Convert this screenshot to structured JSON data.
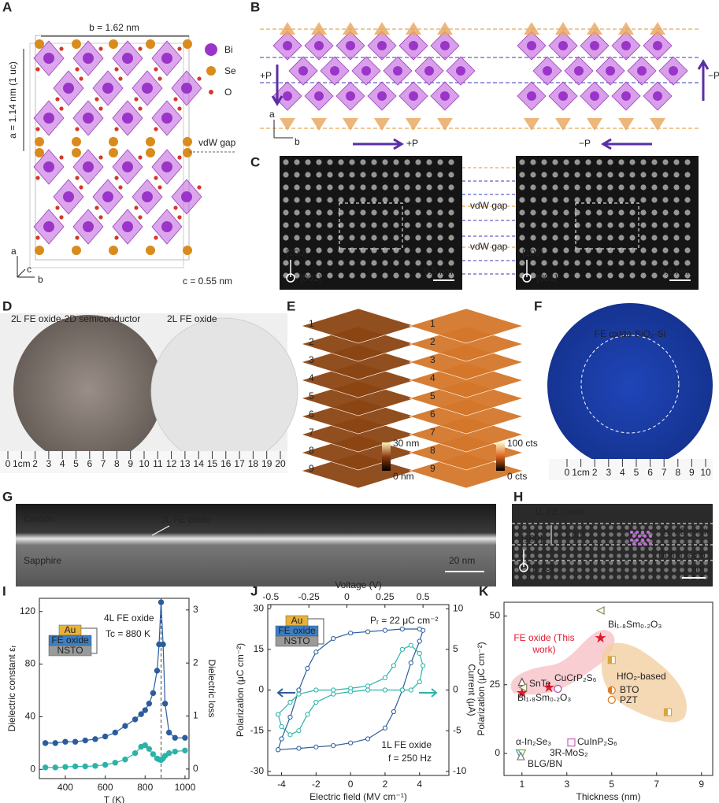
{
  "panels": {
    "A": {
      "label": "A",
      "b_length": "b = 1.62 nm",
      "a_length": "a = 1.14 nm (1 uc)",
      "vdw_gap": "vdW gap",
      "legend": [
        "Bi",
        "Se",
        "O"
      ],
      "c_length": "c = 0.55 nm",
      "axes": [
        "a",
        "c",
        "b"
      ]
    },
    "B": {
      "label": "B",
      "left_p": "+P",
      "right_p": "−P",
      "bottom_left_p": "+P",
      "bottom_right_p": "−P",
      "axes": [
        "a",
        "b"
      ]
    },
    "C": {
      "label": "C",
      "vdw_gap": [
        "vdW gap",
        "vdW gap"
      ],
      "directions": [
        "[100]",
        "[001]",
        "[100]",
        "[001]"
      ],
      "scale": [
        "0.5 nm",
        "0.5 nm"
      ]
    },
    "D": {
      "label": "D",
      "left": "2L FE oxide-2D semiconductor",
      "right": "2L FE oxide",
      "ruler": [
        "0",
        "1cm",
        "2",
        "3",
        "4",
        "5",
        "6",
        "7",
        "8",
        "9",
        "10",
        "11",
        "12",
        "13",
        "14",
        "15",
        "16",
        "17",
        "18",
        "19",
        "20"
      ]
    },
    "E": {
      "label": "E",
      "layers": [
        "1",
        "2",
        "3",
        "4",
        "5",
        "6",
        "7",
        "8",
        "9"
      ],
      "scale_left": [
        "30 nm",
        "0 nm"
      ],
      "scale_right": [
        "100 cts",
        "0 cts"
      ]
    },
    "F": {
      "label": "F",
      "sample": "FE oxide-SiO₂-Si",
      "ruler": [
        "0",
        "1cm",
        "2",
        "3",
        "4",
        "5",
        "6",
        "7",
        "8",
        "9",
        "10"
      ]
    },
    "G": {
      "label": "G",
      "top": "Carbon",
      "film": "3L FE oxide",
      "bottom": "Sapphire",
      "scale": "20 nm"
    },
    "H": {
      "label": "H",
      "top": "1L FE oxide",
      "direction_up": "[100]",
      "thickness": "1.1 nm",
      "film": "1L FE oxide",
      "buffer": "Buffer layer",
      "direction": "[013]",
      "scale": "1 nm"
    }
  },
  "chart_data": [
    {
      "type": "line",
      "label": "I",
      "title": "4L FE oxide",
      "annotation": "Tc = 880 K",
      "tc": 880,
      "inset": [
        "Au",
        "FE oxide",
        "NSTO"
      ],
      "xlabel": "T (K)",
      "ylabel": "Dielectric constant εᵣ",
      "y2label": "Dielectric loss",
      "x": [
        300,
        350,
        400,
        450,
        500,
        550,
        600,
        650,
        700,
        750,
        780,
        800,
        820,
        840,
        860,
        870,
        880,
        890,
        900,
        920,
        950,
        1000
      ],
      "series": [
        {
          "color": "#2b5d9c",
          "marker": "circle",
          "values": [
            20,
            20,
            21,
            21,
            22,
            23,
            25,
            28,
            33,
            38,
            42,
            45,
            50,
            58,
            75,
            95,
            127,
            95,
            50,
            28,
            24,
            24
          ]
        },
        {
          "color": "#2bb3a8",
          "marker": "circle",
          "axis": "y2",
          "values": [
            0.03,
            0.03,
            0.04,
            0.05,
            0.05,
            0.06,
            0.08,
            0.12,
            0.18,
            0.3,
            0.42,
            0.45,
            0.38,
            0.28,
            0.2,
            0.18,
            0.17,
            0.2,
            0.25,
            0.3,
            0.33,
            0.35
          ]
        }
      ],
      "xlim": [
        270,
        1020
      ],
      "xticks": [
        400,
        600,
        800,
        1000
      ],
      "ylim": [
        -7,
        130
      ],
      "yticks": [
        0,
        40,
        80,
        120
      ],
      "y2lim": [
        -0.18,
        3.22
      ],
      "y2ticks": [
        0,
        1,
        2,
        3
      ]
    },
    {
      "type": "line",
      "label": "J",
      "annotations": [
        "Pᵣ = 22 μC cm⁻²",
        "1L FE oxide",
        "f = 250 Hz"
      ],
      "inset": [
        "Au",
        "FE oxide",
        "NSTO"
      ],
      "xlabel": "Electric field (MV cm⁻¹)",
      "x2label": "Voltage (V)",
      "ylabel": "Polarization (μC cm⁻²)",
      "y2label": "Current (μA)",
      "series": [
        {
          "color": "#2b5d9c",
          "marker": "circle-open",
          "x": [
            -4.2,
            -3,
            -2,
            -1,
            0,
            1,
            2,
            2.5,
            3,
            3.5,
            4,
            4.2,
            4,
            3,
            2,
            1,
            0,
            -1,
            -2,
            -2.5,
            -3,
            -3.5,
            -4,
            -4.2
          ],
          "values": [
            -22,
            -21.5,
            -21,
            -20.5,
            -19.5,
            -18,
            -14,
            -8,
            0,
            10,
            18,
            22,
            22.5,
            22.5,
            22,
            21.5,
            21,
            19,
            14,
            8,
            0,
            -10,
            -18,
            -22
          ]
        },
        {
          "color": "#2bb3a8",
          "marker": "circle-open",
          "axis": "y2",
          "x": [
            -4.2,
            -3.5,
            -3,
            -2,
            -1,
            0,
            1,
            2,
            2.5,
            3,
            3.5,
            4,
            4.2,
            4,
            3.5,
            3,
            2,
            1,
            0,
            -1,
            -2,
            -2.5,
            -3,
            -3.5,
            -4,
            -4.2
          ],
          "values": [
            -3,
            -1.5,
            -0.5,
            0,
            0,
            0.2,
            0.5,
            1.5,
            3,
            5,
            5.5,
            4.5,
            3,
            1,
            0,
            0,
            0,
            0,
            -0.2,
            -0.5,
            -1.5,
            -3,
            -5,
            -5.5,
            -4.5,
            -3
          ]
        }
      ],
      "xlim": [
        -4.8,
        5.7
      ],
      "xticks": [
        -4,
        -2,
        0,
        2,
        4
      ],
      "x2lim": [
        -0.52,
        0.67
      ],
      "x2ticks": [
        -0.5,
        -0.25,
        0,
        0.25,
        0.5
      ],
      "ylim": [
        -31.5,
        31.5
      ],
      "yticks": [
        -30,
        -15,
        0,
        15,
        30
      ],
      "y2lim": [
        -10.5,
        10.5
      ],
      "y2ticks": [
        -10,
        -5,
        0,
        5,
        10
      ]
    },
    {
      "type": "scatter",
      "label": "K",
      "xlabel": "Thickness (nm)",
      "ylabel": "Polarization (μC cm⁻²)",
      "series": [
        {
          "name": "FE oxide (This work)",
          "color": "#e0192d",
          "marker": "star",
          "x": [
            1,
            2.2,
            4.5
          ],
          "values": [
            22,
            24,
            42
          ]
        },
        {
          "name": "Bi₁.₈Sm₀.₂O₃",
          "color": "#8a8a5c",
          "marker": "triangle-left-open",
          "x": [
            4.5
          ],
          "values": [
            52
          ]
        },
        {
          "name": "SnTe",
          "color": "#555555",
          "marker": "triangle-open",
          "x": [
            1
          ],
          "values": [
            26
          ]
        },
        {
          "name": "CuCrP₂S₆",
          "color": "#a64ca6",
          "marker": "circle-open",
          "x": [
            2.6
          ],
          "values": [
            23.5
          ]
        },
        {
          "name": "Bi₁.₈Sm₀.₂O₃",
          "color": "#8a8a5c",
          "marker": "triangle-left-open",
          "x": [
            1.05
          ],
          "values": [
            24
          ]
        },
        {
          "name": "HfO₂-based",
          "color": "#d9a441",
          "marker": "square-half",
          "x": [
            5,
            7.5
          ],
          "values": [
            34,
            15
          ]
        },
        {
          "name": "BTO",
          "color": "#e07b20",
          "marker": "circle-half",
          "x": [
            5
          ],
          "values": [
            23
          ]
        },
        {
          "name": "PZT",
          "color": "#e07b20",
          "marker": "circle-open",
          "x": [
            5
          ],
          "values": [
            19.5
          ]
        },
        {
          "name": "CuInP₂S₆",
          "color": "#d35fb7",
          "marker": "square-open",
          "x": [
            3.2
          ],
          "values": [
            4
          ]
        },
        {
          "name": "α-In₂Se₃",
          "color": "#2a9fb8",
          "marker": "triangle-down-open",
          "x": [
            0.9
          ],
          "values": [
            0
          ]
        },
        {
          "name": "3R-MoS₂",
          "color": "#7aa33b",
          "marker": "triangle-down-open",
          "x": [
            1
          ],
          "values": [
            0
          ]
        },
        {
          "name": "BLG/BN",
          "color": "#777777",
          "marker": "triangle-open",
          "x": [
            0.95
          ],
          "values": [
            -1
          ]
        }
      ],
      "xlim": [
        0.2,
        9.5
      ],
      "xticks": [
        1,
        3,
        5,
        7,
        9
      ],
      "ylim": [
        -8,
        55
      ],
      "yticks": [
        0,
        25,
        50
      ]
    }
  ]
}
